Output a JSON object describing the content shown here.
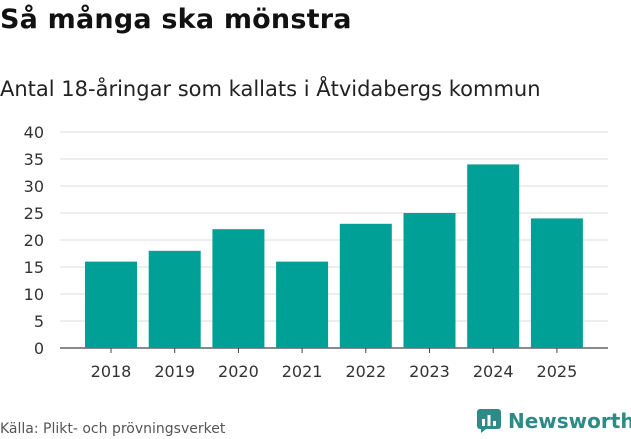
{
  "header": {
    "title": "Så många ska mönstra",
    "subtitle": "Antal 18-åringar som kallats i Åtvidabergs kommun"
  },
  "chart_data": {
    "type": "bar",
    "title": "Så många ska mönstra",
    "subtitle": "Antal 18-åringar som kallats i Åtvidabergs kommun",
    "categories": [
      "2018",
      "2019",
      "2020",
      "2021",
      "2022",
      "2023",
      "2024",
      "2025"
    ],
    "values": [
      16,
      18,
      22,
      16,
      23,
      25,
      34,
      24
    ],
    "xlabel": "",
    "ylabel": "",
    "ylim": [
      0,
      40
    ],
    "yticks": [
      0,
      5,
      10,
      15,
      20,
      25,
      30,
      35,
      40
    ],
    "grid": true,
    "bar_color": "#00a096"
  },
  "footer": {
    "source": "Källa: Plikt- och prövningsverket",
    "brand_name": "Newsworthy",
    "brand_icon": "newsworthy-logo-icon",
    "brand_color": "#2d8a86"
  }
}
